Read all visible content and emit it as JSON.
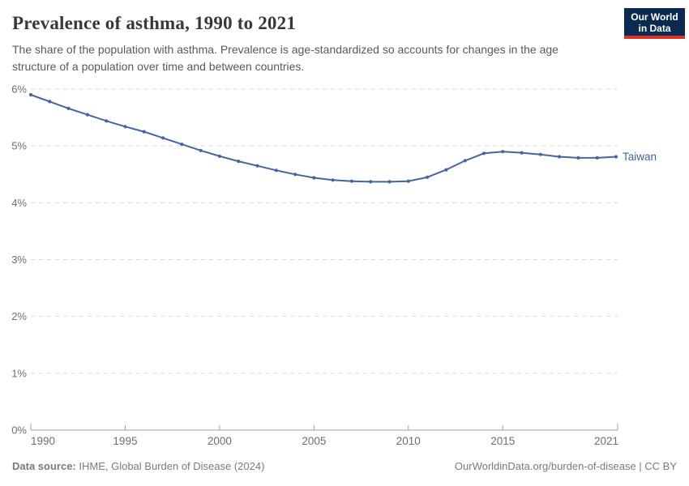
{
  "header": {
    "title": "Prevalence of asthma, 1990 to 2021",
    "subtitle": "The share of the population with asthma. Prevalence is age-standardized so accounts for changes in the age structure of a population over time and between countries.",
    "logo": {
      "line1": "Our World",
      "line2": "in Data"
    }
  },
  "chart_data": {
    "type": "line",
    "title": "Prevalence of asthma, 1990 to 2021",
    "x": [
      1990,
      1991,
      1992,
      1993,
      1994,
      1995,
      1996,
      1997,
      1998,
      1999,
      2000,
      2001,
      2002,
      2003,
      2004,
      2005,
      2006,
      2007,
      2008,
      2009,
      2010,
      2011,
      2012,
      2013,
      2014,
      2015,
      2016,
      2017,
      2018,
      2019,
      2020,
      2021
    ],
    "series": [
      {
        "name": "Taiwan",
        "color": "#4664a0",
        "values": [
          5.9,
          5.78,
          5.66,
          5.55,
          5.44,
          5.34,
          5.25,
          5.14,
          5.03,
          4.92,
          4.82,
          4.73,
          4.65,
          4.57,
          4.5,
          4.44,
          4.4,
          4.38,
          4.37,
          4.37,
          4.38,
          4.45,
          4.58,
          4.74,
          4.87,
          4.9,
          4.88,
          4.85,
          4.81,
          4.79,
          4.79,
          4.81
        ]
      }
    ],
    "ylim": [
      0,
      6
    ],
    "yticks": [
      0,
      1,
      2,
      3,
      4,
      5,
      6
    ],
    "ytick_suffix": "%",
    "xticks": [
      1990,
      1995,
      2000,
      2005,
      2010,
      2015,
      2021
    ],
    "grid": "horizontal-dashed",
    "legend_position": "line-end-label"
  },
  "style_colors": {
    "line": "#4664a0",
    "grid": "#d9d9d9",
    "axis": "#a1a1a1",
    "tick_label": "#6e6e6e",
    "title": "#383838",
    "subtitle": "#595959",
    "logo_bg": "#0b2a52",
    "logo_red": "#dc3222"
  },
  "footer": {
    "datasource_label": "Data source:",
    "datasource_value": "IHME, Global Burden of Disease (2024)",
    "credit": "OurWorldinData.org/burden-of-disease | CC BY"
  }
}
